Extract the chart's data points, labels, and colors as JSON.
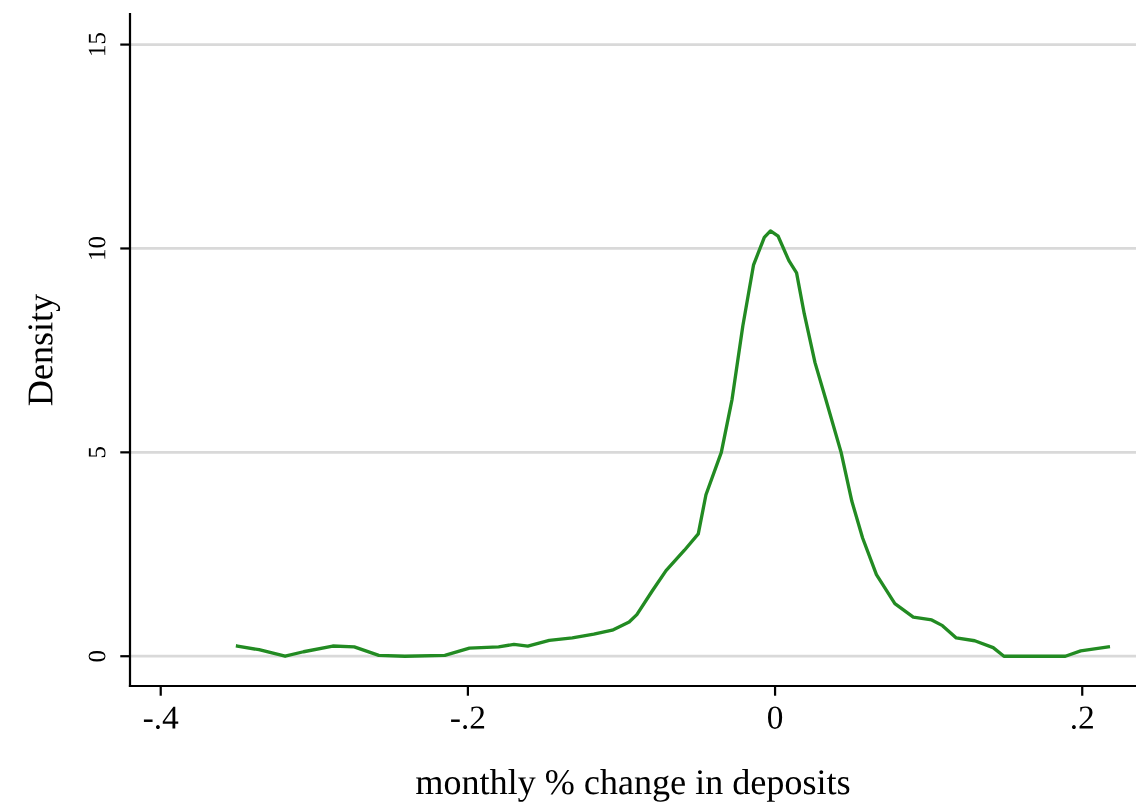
{
  "chart_data": {
    "type": "line",
    "xlabel": "monthly % change in deposits",
    "ylabel": "Density",
    "xlim": [
      -0.42,
      0.235
    ],
    "ylim": [
      -0.73,
      15.75
    ],
    "xticks": [
      {
        "value": -0.4,
        "label": "-.4"
      },
      {
        "value": -0.2,
        "label": "-.2"
      },
      0,
      {
        "value": 0.2,
        "label": ".2"
      }
    ],
    "yticks": [
      0,
      5,
      10,
      15
    ],
    "grid": "y",
    "legend": false,
    "marker": "none",
    "line_style": "solid",
    "series": [
      {
        "color": "#228b22",
        "x": [
          -0.35,
          -0.336,
          -0.319,
          -0.307,
          -0.288,
          -0.274,
          -0.258,
          -0.241,
          -0.215,
          -0.199,
          -0.18,
          -0.17,
          -0.161,
          -0.147,
          -0.132,
          -0.118,
          -0.106,
          -0.095,
          -0.09,
          -0.08,
          -0.071,
          -0.059,
          -0.05,
          -0.045,
          -0.035,
          -0.028,
          -0.021,
          -0.014,
          -0.007,
          -0.003,
          0.002,
          0.009,
          0.014,
          0.019,
          0.026,
          0.033,
          0.043,
          0.05,
          0.057,
          0.066,
          0.078,
          0.09,
          0.102,
          0.109,
          0.118,
          0.13,
          0.142,
          0.149,
          0.189,
          0.199,
          0.217
        ],
        "values": [
          0.25,
          0.16,
          0,
          0.11,
          0.25,
          0.23,
          0.02,
          0,
          0.02,
          0.2,
          0.23,
          0.29,
          0.25,
          0.39,
          0.45,
          0.54,
          0.64,
          0.84,
          1.02,
          1.6,
          2.1,
          2.6,
          3.0,
          3.96,
          5.0,
          6.3,
          8.1,
          9.6,
          10.27,
          10.43,
          10.3,
          9.7,
          9.4,
          8.4,
          7.2,
          6.3,
          5.0,
          3.8,
          2.9,
          2.0,
          1.29,
          0.96,
          0.89,
          0.75,
          0.45,
          0.38,
          0.21,
          0,
          0,
          0.13,
          0.23
        ]
      }
    ]
  }
}
